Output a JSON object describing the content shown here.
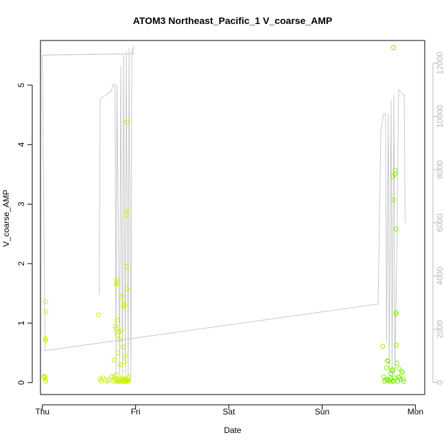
{
  "chart_data": {
    "type": "scatter",
    "title": "ATOM3 Northeast_Pacific_1 V_coarse_AMP",
    "xlabel": "Date",
    "ylabel": "V_coarse_AMP",
    "x_ticks": [
      "Thu",
      "Fri",
      "Sat",
      "Sun",
      "Mon"
    ],
    "y_ticks": [
      0,
      1,
      2,
      3,
      4,
      5
    ],
    "y2_ticks": [
      0,
      2000,
      4000,
      6000,
      8000,
      10000,
      12000
    ],
    "xlim": [
      -0.02,
      4.1
    ],
    "ylim": [
      -0.2,
      5.75
    ],
    "y2lim": [
      -450,
      12850
    ],
    "grid": false,
    "legend": "none",
    "colors": {
      "line": "#c8c8c8",
      "points_early": "#c8f000",
      "points_late": "#7cf000",
      "axis": "#000000",
      "right_axis": "#b8b8b8"
    },
    "series": [
      {
        "type": "points",
        "values": [
          {
            "x": 0.02,
            "y": 0.11
          },
          {
            "x": 0.025,
            "y": 0.08
          },
          {
            "x": 0.03,
            "y": 0.05
          },
          {
            "x": 0.035,
            "y": 0.02
          },
          {
            "x": 0.028,
            "y": 0.1
          },
          {
            "x": 0.032,
            "y": 0.74
          },
          {
            "x": 0.034,
            "y": 0.71
          },
          {
            "x": 0.038,
            "y": 1.19
          },
          {
            "x": 0.036,
            "y": 1.36
          },
          {
            "x": 0.6,
            "y": 1.14
          },
          {
            "x": 0.62,
            "y": 0.06
          },
          {
            "x": 0.63,
            "y": 0.03
          },
          {
            "x": 0.65,
            "y": 0.08
          },
          {
            "x": 0.68,
            "y": 0.04
          },
          {
            "x": 0.7,
            "y": 0.02
          },
          {
            "x": 0.72,
            "y": 0.05
          },
          {
            "x": 0.74,
            "y": 0.1
          },
          {
            "x": 0.76,
            "y": 0.03
          },
          {
            "x": 0.77,
            "y": 0.38
          },
          {
            "x": 0.78,
            "y": 0.06
          },
          {
            "x": 0.785,
            "y": 0.95
          },
          {
            "x": 0.79,
            "y": 1.65
          },
          {
            "x": 0.795,
            "y": 1.72
          },
          {
            "x": 0.8,
            "y": 1.68
          },
          {
            "x": 0.79,
            "y": 0.9
          },
          {
            "x": 0.8,
            "y": 1.05
          },
          {
            "x": 0.805,
            "y": 0.8
          },
          {
            "x": 0.81,
            "y": 0.5
          },
          {
            "x": 0.815,
            "y": 0.02
          },
          {
            "x": 0.82,
            "y": 0.05
          },
          {
            "x": 0.825,
            "y": 0.85
          },
          {
            "x": 0.83,
            "y": 0.72
          },
          {
            "x": 0.835,
            "y": 0.3
          },
          {
            "x": 0.84,
            "y": 0.03
          },
          {
            "x": 0.845,
            "y": 0.88
          },
          {
            "x": 0.85,
            "y": 1.45
          },
          {
            "x": 0.855,
            "y": 0.02
          },
          {
            "x": 0.86,
            "y": 0.05
          },
          {
            "x": 0.865,
            "y": 0.6
          },
          {
            "x": 0.87,
            "y": 1.28
          },
          {
            "x": 0.875,
            "y": 1.32
          },
          {
            "x": 0.878,
            "y": 1.3
          },
          {
            "x": 0.88,
            "y": 0.35
          },
          {
            "x": 0.885,
            "y": 0.45
          },
          {
            "x": 0.89,
            "y": 0.06
          },
          {
            "x": 0.895,
            "y": 0.02
          },
          {
            "x": 0.9,
            "y": 2.88
          },
          {
            "x": 0.902,
            "y": 2.82
          },
          {
            "x": 0.905,
            "y": 4.38
          },
          {
            "x": 0.905,
            "y": 1.95
          },
          {
            "x": 0.91,
            "y": 1.58
          },
          {
            "x": 0.915,
            "y": 0.04
          },
          {
            "x": 0.92,
            "y": 0.08
          },
          {
            "x": 0.925,
            "y": 0.03
          },
          {
            "x": 0.93,
            "y": 0.1
          },
          {
            "x": 0.89,
            "y": 0.03
          },
          {
            "x": 0.86,
            "y": 0.08
          },
          {
            "x": 0.84,
            "y": 0.08
          },
          {
            "x": 0.82,
            "y": 0.02
          },
          {
            "x": 0.79,
            "y": 0.02
          },
          {
            "x": 0.77,
            "y": 0.1
          },
          {
            "x": 0.79,
            "y": 0.13
          },
          {
            "x": 0.8,
            "y": 0.05
          },
          {
            "x": 0.875,
            "y": 0.02
          },
          {
            "x": 0.91,
            "y": 0.05
          },
          {
            "x": 3.65,
            "y": 0.61
          },
          {
            "x": 3.66,
            "y": 0.1
          },
          {
            "x": 3.67,
            "y": 0.02
          },
          {
            "x": 3.68,
            "y": 0.05
          },
          {
            "x": 3.69,
            "y": 0.25
          },
          {
            "x": 3.7,
            "y": 0.37
          },
          {
            "x": 3.705,
            "y": 0.36
          },
          {
            "x": 3.71,
            "y": 0.04
          },
          {
            "x": 3.72,
            "y": 0.02
          },
          {
            "x": 3.73,
            "y": 0.08
          },
          {
            "x": 3.74,
            "y": 0.05
          },
          {
            "x": 3.75,
            "y": 0.2
          },
          {
            "x": 3.755,
            "y": 0.22
          },
          {
            "x": 3.76,
            "y": 3.47
          },
          {
            "x": 3.765,
            "y": 3.07
          },
          {
            "x": 3.77,
            "y": 0.03
          },
          {
            "x": 3.775,
            "y": 0.08
          },
          {
            "x": 3.78,
            "y": 3.5
          },
          {
            "x": 3.785,
            "y": 3.57
          },
          {
            "x": 3.79,
            "y": 2.58
          },
          {
            "x": 3.792,
            "y": 1.18
          },
          {
            "x": 3.794,
            "y": 1.15
          },
          {
            "x": 3.796,
            "y": 0.63
          },
          {
            "x": 3.8,
            "y": 0.33
          },
          {
            "x": 3.81,
            "y": 0.02
          },
          {
            "x": 3.82,
            "y": 0.24
          },
          {
            "x": 3.83,
            "y": 0.08
          },
          {
            "x": 3.84,
            "y": 0.05
          },
          {
            "x": 3.85,
            "y": 0.19
          },
          {
            "x": 3.86,
            "y": 0.17
          },
          {
            "x": 3.87,
            "y": 0.06
          },
          {
            "x": 3.875,
            "y": 0.02
          },
          {
            "x": 3.765,
            "y": 5.63
          },
          {
            "x": 3.7,
            "y": 0.05
          },
          {
            "x": 3.74,
            "y": 0.15
          },
          {
            "x": 3.76,
            "y": 0.02
          },
          {
            "x": 3.82,
            "y": 0.1
          }
        ]
      },
      {
        "type": "line",
        "axis": "right",
        "values": [
          {
            "x": 0.0,
            "y": 12300
          },
          {
            "x": 0.98,
            "y": 12350
          },
          {
            "x": 0.97,
            "y": 12400
          },
          {
            "x": 0.98,
            "y": 12650
          },
          {
            "x": 0.96,
            "y": 12400
          },
          {
            "x": 0.95,
            "y": 300
          },
          {
            "x": 0.93,
            "y": 12550
          },
          {
            "x": 0.92,
            "y": 300
          },
          {
            "x": 0.9,
            "y": 12450
          },
          {
            "x": 0.89,
            "y": 300
          },
          {
            "x": 0.87,
            "y": 12300
          },
          {
            "x": 0.86,
            "y": 300
          },
          {
            "x": 0.84,
            "y": 11900
          },
          {
            "x": 0.83,
            "y": 300
          },
          {
            "x": 0.8,
            "y": 11200
          },
          {
            "x": 0.79,
            "y": 300
          },
          {
            "x": 0.78,
            "y": 11200
          },
          {
            "x": 0.76,
            "y": 11200
          },
          {
            "x": 0.74,
            "y": 10950
          },
          {
            "x": 0.7,
            "y": 10850
          },
          {
            "x": 0.62,
            "y": 10650
          },
          {
            "x": 0.61,
            "y": 3300
          }
        ],
        "segments": [
          [
            {
              "x": 0.0,
              "y": 12300
            },
            {
              "x": 0.98,
              "y": 12350
            }
          ],
          [
            {
              "x": 0.0,
              "y": 12300
            },
            {
              "x": 0.03,
              "y": 1200
            },
            {
              "x": 3.6,
              "y": 2950
            },
            {
              "x": 3.62,
              "y": 7300
            },
            {
              "x": 3.63,
              "y": 9500
            },
            {
              "x": 3.66,
              "y": 10100
            },
            {
              "x": 3.68,
              "y": 10100
            },
            {
              "x": 3.69,
              "y": 1500
            },
            {
              "x": 3.71,
              "y": 10100
            },
            {
              "x": 3.72,
              "y": 300
            },
            {
              "x": 3.74,
              "y": 10600
            },
            {
              "x": 3.75,
              "y": 300
            },
            {
              "x": 3.77,
              "y": 10800
            },
            {
              "x": 3.78,
              "y": 300
            },
            {
              "x": 3.8,
              "y": 4600
            },
            {
              "x": 3.82,
              "y": 11000
            },
            {
              "x": 3.85,
              "y": 10900
            },
            {
              "x": 3.88,
              "y": 10800
            },
            {
              "x": 3.89,
              "y": 6000
            }
          ]
        ]
      }
    ]
  }
}
